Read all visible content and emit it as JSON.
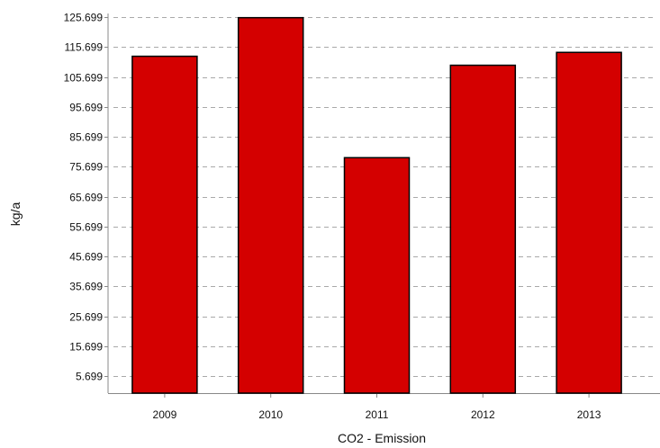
{
  "chart_data": {
    "type": "bar",
    "categories": [
      "2009",
      "2010",
      "2011",
      "2012",
      "2013"
    ],
    "values": [
      112.6,
      125.5,
      78.7,
      109.6,
      113.9
    ],
    "xlabel": "CO2 - Emission",
    "ylabel": "kg/a",
    "ylim": [
      0,
      125.699
    ],
    "yticks": [
      5.699,
      15.699,
      25.699,
      35.699,
      45.699,
      55.699,
      65.699,
      75.699,
      85.699,
      95.699,
      105.699,
      115.699,
      125.699
    ],
    "ytick_labels": [
      "5.699",
      "15.699",
      "25.699",
      "35.699",
      "45.699",
      "55.699",
      "65.699",
      "75.699",
      "85.699",
      "95.699",
      "105.699",
      "115.699",
      "125.699"
    ],
    "grid": "horizontal dashed",
    "bar_color": "#d40000",
    "bar_edge_color": "#000000"
  }
}
